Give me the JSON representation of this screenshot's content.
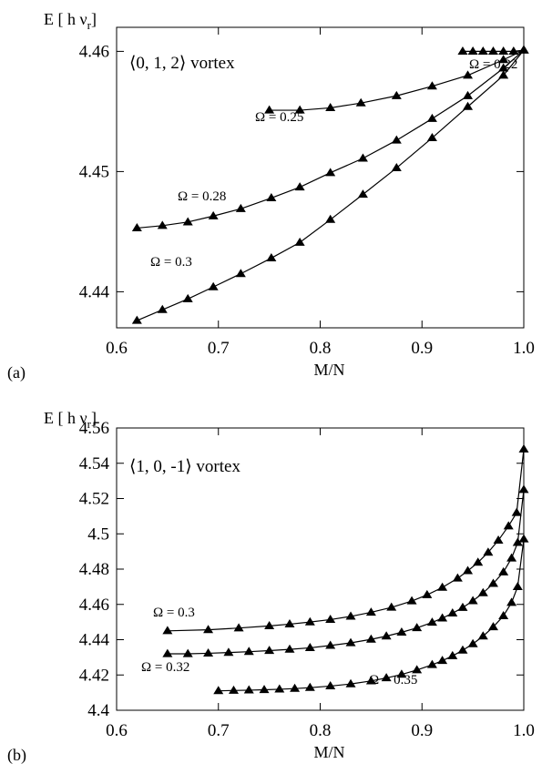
{
  "chart_data": [
    {
      "panel": "(a)",
      "type": "line",
      "title": "⟨0, 1, 2⟩ vortex",
      "xlabel": "M/N",
      "ylabel": "E [ h ν",
      "ylabel_sub": "r",
      "ylabel_end": "]",
      "xlim": [
        0.6,
        1.0
      ],
      "ylim": [
        4.437,
        4.462
      ],
      "xticks": [
        0.6,
        0.7,
        0.8,
        0.9,
        1.0
      ],
      "xtick_labels": [
        "0.6",
        "0.7",
        "0.8",
        "0.9",
        "1.0"
      ],
      "yticks": [
        4.44,
        4.45,
        4.46
      ],
      "ytick_labels": [
        "4.44",
        "4.45",
        "4.46"
      ],
      "marker": "triangle",
      "color": "#000000",
      "series": [
        {
          "name": "Ω = 0.22",
          "x": [
            0.94,
            0.95,
            0.96,
            0.97,
            0.98,
            0.99,
            1.0
          ],
          "y": [
            4.46,
            4.46,
            4.46,
            4.46,
            4.46,
            4.46,
            4.4601
          ]
        },
        {
          "name": "Ω = 0.25",
          "x": [
            0.75,
            0.78,
            0.81,
            0.84,
            0.875,
            0.91,
            0.945,
            0.98,
            1.0
          ],
          "y": [
            4.4551,
            4.4551,
            4.4553,
            4.4557,
            4.4563,
            4.4571,
            4.458,
            4.4593,
            4.4601
          ]
        },
        {
          "name": "Ω = 0.28",
          "x": [
            0.62,
            0.645,
            0.67,
            0.695,
            0.722,
            0.752,
            0.78,
            0.81,
            0.842,
            0.875,
            0.91,
            0.945,
            0.98,
            1.0
          ],
          "y": [
            4.4453,
            4.4455,
            4.4458,
            4.4463,
            4.4469,
            4.4478,
            4.4487,
            4.4499,
            4.4511,
            4.4526,
            4.4544,
            4.4563,
            4.4586,
            4.4601
          ]
        },
        {
          "name": "Ω = 0.3",
          "x": [
            0.62,
            0.645,
            0.67,
            0.695,
            0.722,
            0.752,
            0.78,
            0.81,
            0.842,
            0.875,
            0.91,
            0.945,
            0.98,
            1.0
          ],
          "y": [
            4.4376,
            4.4385,
            4.4394,
            4.4404,
            4.4415,
            4.4428,
            4.4441,
            4.446,
            4.4481,
            4.4503,
            4.4528,
            4.4554,
            4.458,
            4.4601
          ]
        }
      ]
    },
    {
      "panel": "(b)",
      "type": "line",
      "title": "⟨1, 0, -1⟩ vortex",
      "xlabel": "M/N",
      "ylabel": "E [ h ν",
      "ylabel_sub": "r",
      "ylabel_end": "]",
      "xlim": [
        0.6,
        1.0
      ],
      "ylim": [
        4.4,
        4.56
      ],
      "xticks": [
        0.6,
        0.7,
        0.8,
        0.9,
        1.0
      ],
      "xtick_labels": [
        "0.6",
        "0.7",
        "0.8",
        "0.9",
        "1.0"
      ],
      "yticks": [
        4.4,
        4.42,
        4.44,
        4.46,
        4.48,
        4.5,
        4.52,
        4.54,
        4.56
      ],
      "ytick_labels": [
        "4.4",
        "4.42",
        "4.44",
        "4.46",
        "4.48",
        "4.5",
        "4.52",
        "4.54",
        "4.56"
      ],
      "marker": "triangle",
      "color": "#000000",
      "series": [
        {
          "name": "Ω = 0.3",
          "x": [
            0.65,
            0.69,
            0.72,
            0.75,
            0.77,
            0.79,
            0.81,
            0.83,
            0.85,
            0.87,
            0.89,
            0.905,
            0.92,
            0.935,
            0.945,
            0.955,
            0.965,
            0.975,
            0.985,
            0.993,
            1.0
          ],
          "y": [
            4.445,
            4.4456,
            4.4466,
            4.4478,
            4.4488,
            4.45,
            4.4514,
            4.4532,
            4.4555,
            4.4583,
            4.4619,
            4.4654,
            4.4696,
            4.4748,
            4.479,
            4.4838,
            4.4895,
            4.4963,
            4.5044,
            4.512,
            4.548
          ]
        },
        {
          "name": "Ω = 0.32",
          "x": [
            0.65,
            0.67,
            0.69,
            0.71,
            0.73,
            0.75,
            0.77,
            0.79,
            0.81,
            0.83,
            0.85,
            0.865,
            0.88,
            0.895,
            0.91,
            0.92,
            0.93,
            0.94,
            0.95,
            0.96,
            0.97,
            0.98,
            0.988,
            0.994,
            1.0
          ],
          "y": [
            4.432,
            4.432,
            4.4323,
            4.4327,
            4.4332,
            4.4338,
            4.4345,
            4.4354,
            4.4367,
            4.4382,
            4.4402,
            4.442,
            4.4442,
            4.4467,
            4.4498,
            4.4522,
            4.455,
            4.4582,
            4.462,
            4.4665,
            4.4718,
            4.4783,
            4.4862,
            4.495,
            4.525
          ]
        },
        {
          "name": "Ω = 0.35",
          "x": [
            0.7,
            0.715,
            0.73,
            0.745,
            0.76,
            0.775,
            0.79,
            0.81,
            0.83,
            0.85,
            0.865,
            0.88,
            0.895,
            0.91,
            0.92,
            0.93,
            0.94,
            0.95,
            0.96,
            0.97,
            0.98,
            0.988,
            0.994,
            1.0
          ],
          "y": [
            4.411,
            4.4112,
            4.4114,
            4.4116,
            4.4119,
            4.4123,
            4.4128,
            4.4137,
            4.4149,
            4.4166,
            4.4183,
            4.4203,
            4.4228,
            4.4258,
            4.4281,
            4.4308,
            4.434,
            4.4376,
            4.442,
            4.4472,
            4.4535,
            4.461,
            4.47,
            4.497
          ]
        }
      ]
    }
  ]
}
